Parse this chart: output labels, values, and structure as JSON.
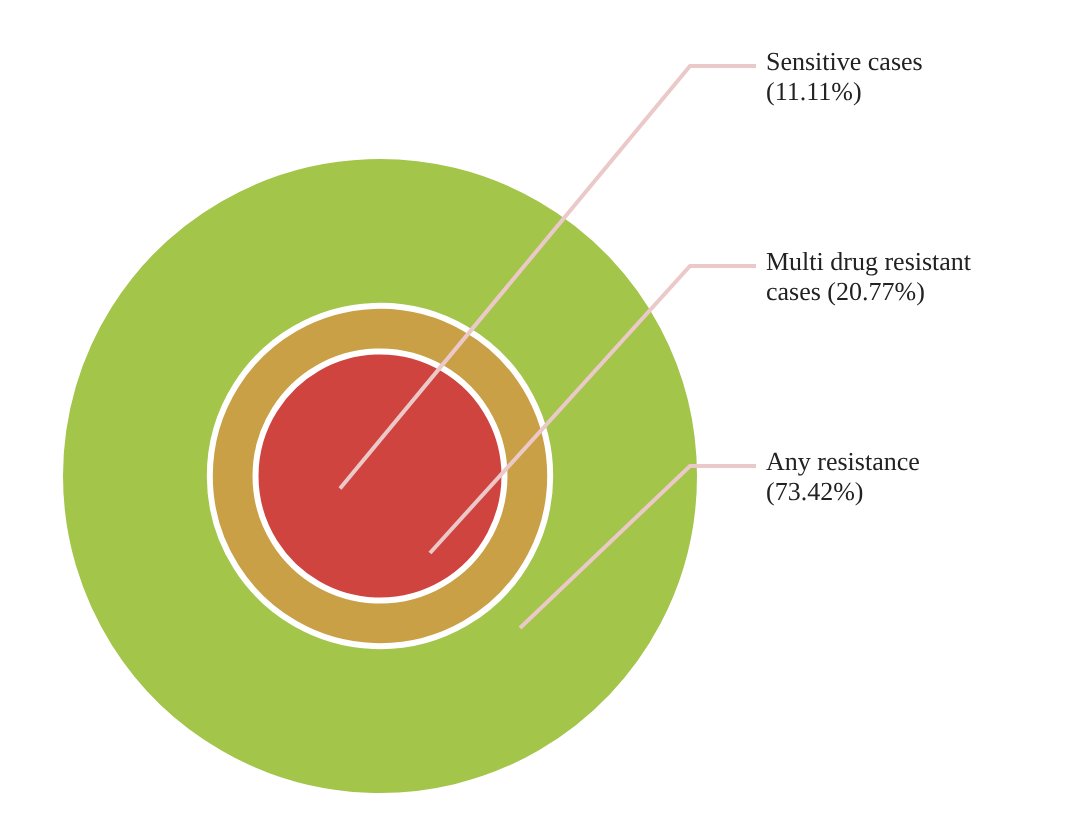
{
  "chart_data": {
    "type": "other",
    "categories": [
      "Sensitive cases",
      "Multi drug resistant cases",
      "Any resistance"
    ],
    "values": [
      11.11,
      20.77,
      73.42
    ],
    "value_labels": [
      "(11.11%)",
      "(20.77%)",
      "(73.42%)"
    ],
    "colors": [
      "#d0443f",
      "#c9a046",
      "#a2c54a"
    ]
  }
}
